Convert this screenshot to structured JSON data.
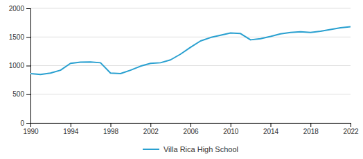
{
  "chart_data": {
    "type": "line",
    "x": [
      1990,
      1991,
      1992,
      1993,
      1994,
      1995,
      1996,
      1997,
      1998,
      1999,
      2000,
      2001,
      2002,
      2003,
      2004,
      2005,
      2006,
      2007,
      2008,
      2009,
      2010,
      2011,
      2012,
      2013,
      2014,
      2015,
      2016,
      2017,
      2018,
      2019,
      2020,
      2021,
      2022
    ],
    "series": [
      {
        "name": "Villa Rica High School",
        "color": "#29a0d0",
        "values": [
          860,
          845,
          870,
          920,
          1040,
          1060,
          1065,
          1050,
          870,
          860,
          920,
          990,
          1040,
          1050,
          1100,
          1200,
          1320,
          1430,
          1490,
          1530,
          1570,
          1560,
          1450,
          1470,
          1510,
          1555,
          1580,
          1590,
          1580,
          1600,
          1630,
          1660,
          1680
        ]
      }
    ],
    "xlim": [
      1990,
      2022
    ],
    "ylim": [
      0,
      2000
    ],
    "xticks": [
      1990,
      1994,
      1998,
      2002,
      2006,
      2010,
      2014,
      2018,
      2022
    ],
    "yticks": [
      0,
      500,
      1000,
      1500,
      2000
    ],
    "grid": "y",
    "legend": "bottom"
  }
}
